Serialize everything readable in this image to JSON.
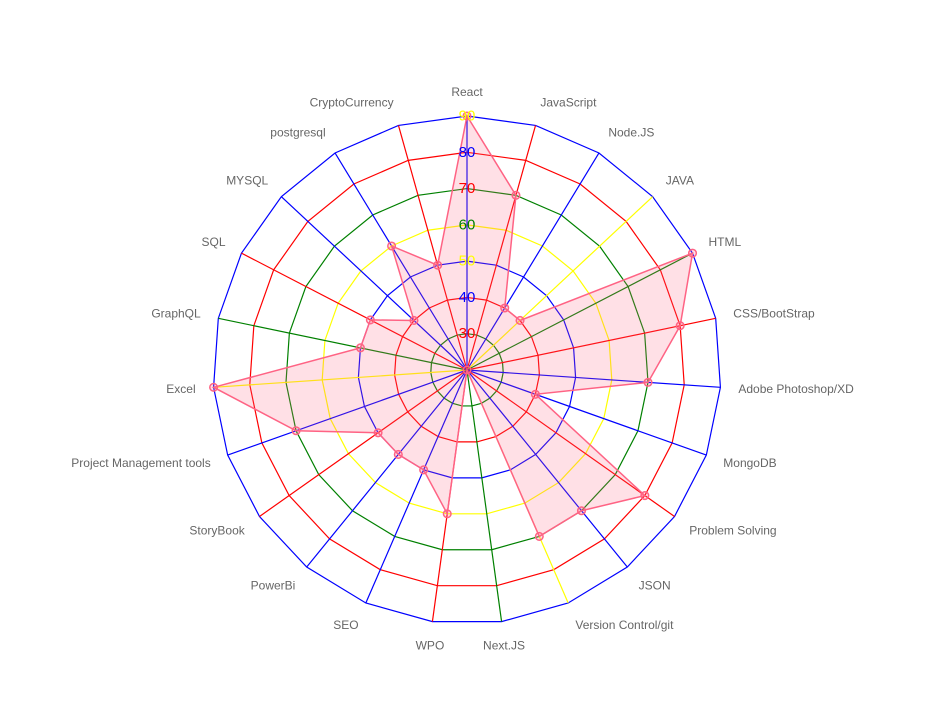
{
  "chart_data": {
    "type": "radar",
    "title": "",
    "labels": [
      "React",
      "JavaScript",
      "Node.JS",
      "JAVA",
      "HTML",
      "CSS/BootStrap",
      "Adobe Photoshop/XD",
      "MongoDB",
      "Problem Solving",
      "JSON",
      "Version Control/git",
      "Next.JS",
      "WPO",
      "SEO",
      "PowerBi",
      "StoryBook",
      "Project Management tools",
      "Excel",
      "GraphQL",
      "SQL",
      "MYSQL",
      "postgresql",
      "CryptoCurrency"
    ],
    "series": [
      {
        "values": [
          90,
          70,
          40,
          40,
          90,
          80,
          70,
          40,
          80,
          70,
          70,
          20,
          60,
          50,
          50,
          50,
          70,
          90,
          50,
          50,
          40,
          60,
          50
        ],
        "fill_color": "rgba(255,99,132,0.2)",
        "line_color": "#ff6384"
      }
    ],
    "r_range": [
      20,
      90
    ],
    "ticks": [
      30,
      40,
      50,
      60,
      70,
      80,
      90
    ],
    "ring_colors": [
      "#008000",
      "#ff0000",
      "#0000ff",
      "#ffff00",
      "#008000",
      "#ff0000",
      "#0000ff"
    ],
    "spoke_colors": [
      "#0000ff",
      "#ff0000",
      "#0000ff",
      "#ffff00",
      "#008000",
      "#ff0000",
      "#0000ff"
    ],
    "tick_colors": [
      "#ff0000",
      "#0000ff",
      "#ffff00",
      "#008000",
      "#ff0000",
      "#0000ff",
      "#ffff00"
    ],
    "grid": true,
    "legend": "none"
  }
}
